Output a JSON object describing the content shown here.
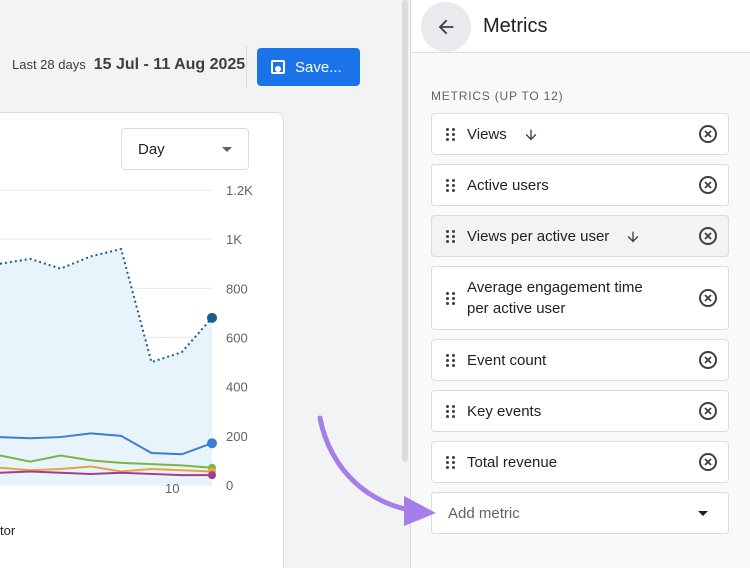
{
  "header": {
    "date_prefix": "Last 28 days",
    "date_range": "15 Jul - 11 Aug 2025",
    "save_label": "Save..."
  },
  "chart": {
    "granularity": "Day",
    "legend_fragment": "tor"
  },
  "chart_data": {
    "type": "line",
    "title": "",
    "xlabel": "",
    "ylabel": "",
    "ylim": [
      0,
      1200
    ],
    "y_ticks": [
      "1.2K",
      "1K",
      "800",
      "600",
      "400",
      "200",
      "0"
    ],
    "x_ticks": [
      "10"
    ],
    "grid": true,
    "x": [
      1,
      2,
      3,
      4,
      5,
      6,
      7,
      8,
      9,
      10,
      11
    ],
    "series": [
      {
        "color": "#1a5e8a",
        "values": [
          900,
          920,
          880,
          930,
          960,
          500,
          540,
          680,
          680,
          680,
          680
        ]
      },
      {
        "color": "#3f7dd1",
        "values": [
          195,
          190,
          195,
          210,
          200,
          130,
          125,
          170,
          170,
          170,
          170
        ]
      },
      {
        "color": "#7cb342",
        "values": [
          120,
          95,
          120,
          100,
          90,
          85,
          80,
          70,
          70,
          70,
          70
        ]
      },
      {
        "color": "#e8a33d",
        "values": [
          70,
          60,
          65,
          75,
          55,
          65,
          60,
          55,
          55,
          55,
          55
        ]
      },
      {
        "color": "#a03d8f",
        "values": [
          50,
          55,
          50,
          45,
          50,
          45,
          40,
          40,
          40,
          40,
          40
        ]
      }
    ]
  },
  "panel": {
    "title": "Metrics",
    "section_label": "METRICS (UP TO 12)",
    "metrics": [
      {
        "label": "Views",
        "sorted": true
      },
      {
        "label": "Active users",
        "sorted": false
      },
      {
        "label": "Views per active user",
        "sorted": true
      },
      {
        "label_line1": "Average engagement time",
        "label_line2": "per active user",
        "sorted": false
      },
      {
        "label": "Event count",
        "sorted": false
      },
      {
        "label": "Key events",
        "sorted": false
      },
      {
        "label": "Total revenue",
        "sorted": false
      }
    ],
    "add_metric_placeholder": "Add metric"
  },
  "colors": {
    "accent": "#1a73e8",
    "annotation_arrow": "#a57ee8"
  }
}
